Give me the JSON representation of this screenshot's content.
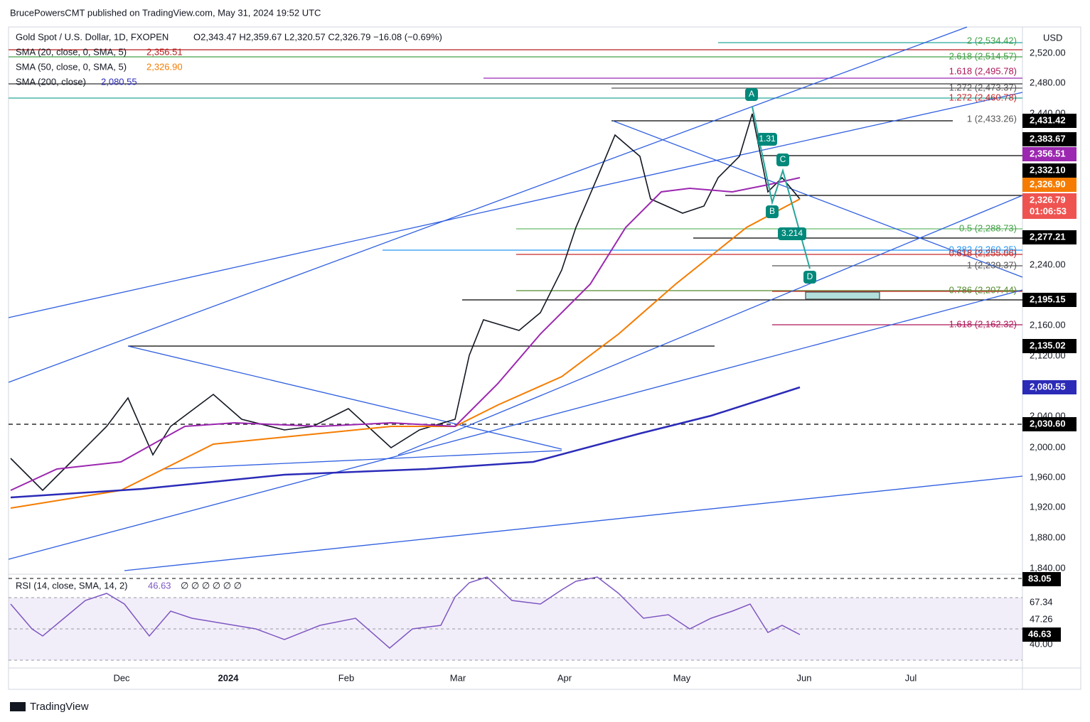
{
  "header": {
    "publisher": "BrucePowersCMT published on TradingView.com, May 31, 2024 19:52 UTC"
  },
  "legend": {
    "symbol": "Gold Spot / U.S. Dollar, 1D, FXOPEN",
    "ohlc": "O2,343.47  H2,359.67  L2,320.57  C2,326.79  −16.08 (−0.69%)",
    "indicators": [
      {
        "label": "SMA (20, close, 0, SMA, 5)",
        "value": "2,356.51"
      },
      {
        "label": "SMA (50, close, 0, SMA, 5)",
        "value": "2,326.90"
      },
      {
        "label": "SMA (200, close)",
        "value": "2,080.55"
      }
    ]
  },
  "price_axis": {
    "currency": "USD",
    "ticks": [
      "2,520.00",
      "2,480.00",
      "2,440.00",
      "2,240.00",
      "2,160.00",
      "2,120.00",
      "2,040.00",
      "2,000.00",
      "1,960.00",
      "1,920.00",
      "1,880.00",
      "1,840.00"
    ]
  },
  "price_tags": [
    "2,431.42",
    "2,383.67",
    "2,356.51",
    "2,332.10",
    "2,326.90",
    "2,326.79",
    "01:06:53",
    "2,277.21",
    "2,195.15",
    "2,135.02",
    "2,080.55",
    "2,030.60"
  ],
  "fib_labels": [
    "2 (2,534.42)",
    "2.618 (2,514.57)",
    "1.618 (2,495.78)",
    "1.272 (2,473.37)",
    "1.272 (2,460.78)",
    "1 (2,433.26)",
    "0.5 (2,288.73)",
    "0.382 (2,260.25)",
    "0.618 (2,255.06)",
    "1 (2,239.37)",
    "0.786 (2,207.44)",
    "1.618 (2,162.32)"
  ],
  "pattern_labels": [
    "A",
    "B",
    "C",
    "D",
    "1.31",
    "3.214"
  ],
  "time_axis": [
    "Dec",
    "2024",
    "Feb",
    "Mar",
    "Apr",
    "May",
    "Jun",
    "Jul"
  ],
  "rsi": {
    "label": "RSI (14, close, SMA, 14, 2)",
    "value": "46.63",
    "extra": "∅ ∅ ∅ ∅ ∅ ∅",
    "ticks": [
      "67.34",
      "47.26",
      "40.00"
    ],
    "tags": [
      "83.05",
      "46.63"
    ]
  },
  "footer": {
    "brand": "TradingView"
  }
}
